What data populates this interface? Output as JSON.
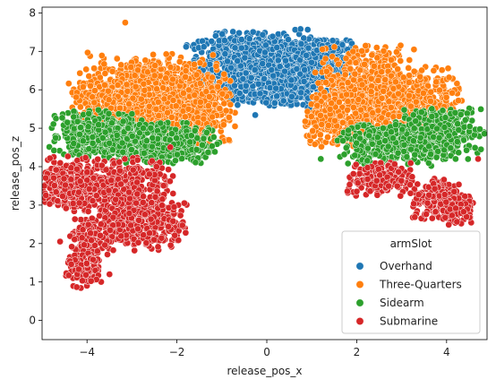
{
  "chart_data": {
    "type": "scatter",
    "xlabel": "release_pos_x",
    "ylabel": "release_pos_z",
    "xlim": [
      -5,
      4.9
    ],
    "ylim": [
      -0.5,
      8.15
    ],
    "xticks": [
      -4,
      -2,
      0,
      2,
      4
    ],
    "yticks": [
      0,
      1,
      2,
      3,
      4,
      5,
      6,
      7,
      8
    ],
    "xtick_labels": [
      "−4",
      "−2",
      "0",
      "2",
      "4"
    ],
    "ytick_labels": [
      "0",
      "1",
      "2",
      "3",
      "4",
      "5",
      "6",
      "7",
      "8"
    ],
    "grid": false,
    "legend": {
      "title": "armSlot",
      "placement": "lower-right"
    },
    "series": [
      {
        "name": "Overhand",
        "color": "#1f77b4",
        "clusters": [
          {
            "cx": -0.75,
            "cz": 6.6,
            "sx": 0.5,
            "sz": 0.45,
            "n": 520
          },
          {
            "cx": 0.0,
            "cz": 6.55,
            "sx": 0.45,
            "sz": 0.5,
            "n": 420
          },
          {
            "cx": 0.75,
            "cz": 6.45,
            "sx": 0.45,
            "sz": 0.45,
            "n": 420
          },
          {
            "cx": 1.3,
            "cz": 6.9,
            "sx": 0.3,
            "sz": 0.25,
            "n": 140
          }
        ],
        "outliers": []
      },
      {
        "name": "Three-Quarters",
        "color": "#ff7f0e",
        "clusters": [
          {
            "cx": -2.6,
            "cz": 5.9,
            "sx": 0.7,
            "sz": 0.5,
            "n": 650
          },
          {
            "cx": -1.6,
            "cz": 5.6,
            "sx": 0.45,
            "sz": 0.55,
            "n": 380
          },
          {
            "cx": -3.5,
            "cz": 5.7,
            "sx": 0.45,
            "sz": 0.35,
            "n": 260
          },
          {
            "cx": 2.2,
            "cz": 6.0,
            "sx": 0.55,
            "sz": 0.55,
            "n": 520
          },
          {
            "cx": 3.2,
            "cz": 5.7,
            "sx": 0.55,
            "sz": 0.45,
            "n": 420
          },
          {
            "cx": 1.5,
            "cz": 5.2,
            "sx": 0.35,
            "sz": 0.35,
            "n": 230
          }
        ],
        "outliers": [
          [
            -3.15,
            7.75
          ]
        ]
      },
      {
        "name": "Sidearm",
        "color": "#2ca02c",
        "clusters": [
          {
            "cx": -3.8,
            "cz": 4.85,
            "sx": 0.5,
            "sz": 0.3,
            "n": 380
          },
          {
            "cx": -2.6,
            "cz": 4.65,
            "sx": 0.55,
            "sz": 0.28,
            "n": 330
          },
          {
            "cx": -1.7,
            "cz": 4.55,
            "sx": 0.3,
            "sz": 0.22,
            "n": 120
          },
          {
            "cx": 2.8,
            "cz": 4.6,
            "sx": 0.6,
            "sz": 0.28,
            "n": 330
          },
          {
            "cx": 3.9,
            "cz": 4.9,
            "sx": 0.45,
            "sz": 0.35,
            "n": 300
          }
        ],
        "outliers": [
          [
            -4.7,
            4.75
          ],
          [
            1.2,
            4.2
          ],
          [
            4.2,
            4.2
          ]
        ]
      },
      {
        "name": "Submarine",
        "color": "#d62728",
        "clusters": [
          {
            "cx": -4.4,
            "cz": 3.55,
            "sx": 0.3,
            "sz": 0.35,
            "n": 300
          },
          {
            "cx": -3.2,
            "cz": 3.35,
            "sx": 0.55,
            "sz": 0.45,
            "n": 420
          },
          {
            "cx": -2.7,
            "cz": 2.55,
            "sx": 0.45,
            "sz": 0.35,
            "n": 300
          },
          {
            "cx": -3.9,
            "cz": 2.15,
            "sx": 0.25,
            "sz": 0.25,
            "n": 140
          },
          {
            "cx": -4.05,
            "cz": 1.3,
            "sx": 0.2,
            "sz": 0.22,
            "n": 130
          },
          {
            "cx": 2.5,
            "cz": 3.65,
            "sx": 0.35,
            "sz": 0.22,
            "n": 170
          },
          {
            "cx": 3.9,
            "cz": 3.15,
            "sx": 0.35,
            "sz": 0.3,
            "n": 200
          },
          {
            "cx": 4.2,
            "cz": 2.8,
            "sx": 0.2,
            "sz": 0.15,
            "n": 60
          }
        ],
        "outliers": [
          [
            -4.95,
            3.5
          ],
          [
            -4.6,
            2.05
          ],
          [
            -3.5,
            1.2
          ],
          [
            4.7,
            4.2
          ]
        ]
      }
    ]
  }
}
